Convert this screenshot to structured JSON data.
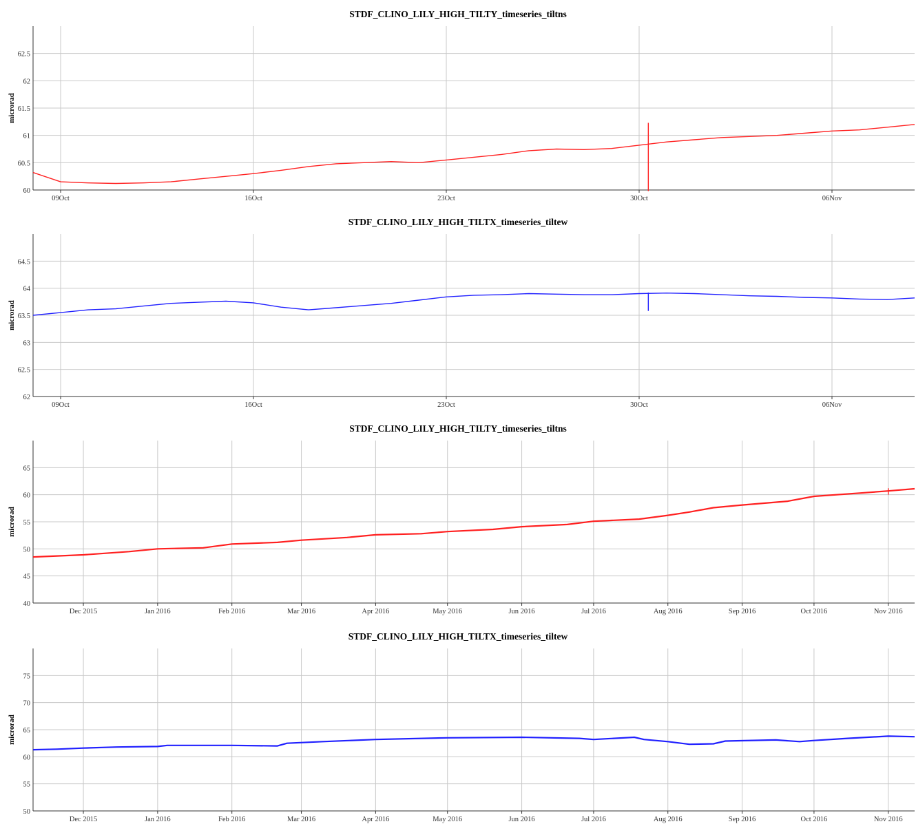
{
  "chart_data": [
    {
      "type": "line",
      "title": "STDF_CLINO_LILY_HIGH_TILTY_timeseries_tiltns",
      "ylabel": "microrad",
      "xlabel": "",
      "xlim": [
        "2016-10-08",
        "2016-11-09"
      ],
      "ylim": [
        60,
        63
      ],
      "yticks": [
        "60",
        "60.5",
        "61",
        "61.5",
        "62",
        "62.5"
      ],
      "xticks": [
        {
          "label": "09Oct",
          "date": "2016-10-09"
        },
        {
          "label": "16Oct",
          "date": "2016-10-16"
        },
        {
          "label": "23Oct",
          "date": "2016-10-23"
        },
        {
          "label": "30Oct",
          "date": "2016-10-30"
        },
        {
          "label": "06Nov",
          "date": "2016-11-06"
        }
      ],
      "grid": true,
      "color": "#ff2020",
      "series": [
        {
          "x": [
            "2016-10-08",
            "2016-10-09",
            "2016-10-10",
            "2016-10-11",
            "2016-10-12",
            "2016-10-13",
            "2016-10-14",
            "2016-10-15",
            "2016-10-16",
            "2016-10-17",
            "2016-10-18",
            "2016-10-19",
            "2016-10-20",
            "2016-10-21",
            "2016-10-22",
            "2016-10-23",
            "2016-10-24",
            "2016-10-25",
            "2016-10-26",
            "2016-10-27",
            "2016-10-28",
            "2016-10-29",
            "2016-10-30",
            "2016-10-31",
            "2016-11-01",
            "2016-11-02",
            "2016-11-03",
            "2016-11-04",
            "2016-11-05",
            "2016-11-06",
            "2016-11-07",
            "2016-11-08",
            "2016-11-09"
          ],
          "values": [
            60.32,
            60.15,
            60.13,
            60.12,
            60.13,
            60.15,
            60.2,
            60.25,
            60.3,
            60.36,
            60.43,
            60.48,
            60.5,
            60.52,
            60.5,
            60.55,
            60.6,
            60.65,
            60.72,
            60.75,
            60.74,
            60.76,
            60.82,
            60.88,
            60.92,
            60.96,
            60.98,
            61.0,
            61.04,
            61.08,
            61.1,
            61.15,
            61.2
          ],
          "spikes": [
            {
              "x": "2016-10-30T08:00",
              "min": 59.98,
              "max": 61.23
            }
          ]
        }
      ]
    },
    {
      "type": "line",
      "title": "STDF_CLINO_LILY_HIGH_TILTX_timeseries_tiltew",
      "ylabel": "microrad",
      "xlabel": "",
      "xlim": [
        "2016-10-08",
        "2016-11-09"
      ],
      "ylim": [
        62,
        65
      ],
      "yticks": [
        "62",
        "62.5",
        "63",
        "63.5",
        "64",
        "64.5"
      ],
      "xticks": [
        {
          "label": "09Oct",
          "date": "2016-10-09"
        },
        {
          "label": "16Oct",
          "date": "2016-10-16"
        },
        {
          "label": "23Oct",
          "date": "2016-10-23"
        },
        {
          "label": "30Oct",
          "date": "2016-10-30"
        },
        {
          "label": "06Nov",
          "date": "2016-11-06"
        }
      ],
      "grid": true,
      "color": "#2020ff",
      "series": [
        {
          "x": [
            "2016-10-08",
            "2016-10-09",
            "2016-10-10",
            "2016-10-11",
            "2016-10-12",
            "2016-10-13",
            "2016-10-14",
            "2016-10-15",
            "2016-10-16",
            "2016-10-17",
            "2016-10-18",
            "2016-10-19",
            "2016-10-20",
            "2016-10-21",
            "2016-10-22",
            "2016-10-23",
            "2016-10-24",
            "2016-10-25",
            "2016-10-26",
            "2016-10-27",
            "2016-10-28",
            "2016-10-29",
            "2016-10-30",
            "2016-10-31",
            "2016-11-01",
            "2016-11-02",
            "2016-11-03",
            "2016-11-04",
            "2016-11-05",
            "2016-11-06",
            "2016-11-07",
            "2016-11-08",
            "2016-11-09"
          ],
          "values": [
            63.5,
            63.55,
            63.6,
            63.62,
            63.67,
            63.72,
            63.74,
            63.76,
            63.73,
            63.65,
            63.6,
            63.64,
            63.68,
            63.72,
            63.78,
            63.84,
            63.87,
            63.88,
            63.9,
            63.89,
            63.88,
            63.88,
            63.9,
            63.91,
            63.9,
            63.88,
            63.86,
            63.85,
            63.83,
            63.82,
            63.8,
            63.79,
            63.82
          ],
          "spikes": [
            {
              "x": "2016-10-30T08:00",
              "min": 63.58,
              "max": 63.92
            }
          ]
        }
      ]
    },
    {
      "type": "line",
      "title": "STDF_CLINO_LILY_HIGH_TILTY_timeseries_tiltns",
      "ylabel": "microrad",
      "xlabel": "",
      "xlim": [
        "2015-11-10",
        "2016-11-12"
      ],
      "ylim": [
        40,
        70
      ],
      "yticks": [
        "40",
        "45",
        "50",
        "55",
        "60",
        "65"
      ],
      "xticks": [
        {
          "label": "Dec 2015",
          "date": "2015-12-01"
        },
        {
          "label": "Jan 2016",
          "date": "2016-01-01"
        },
        {
          "label": "Feb 2016",
          "date": "2016-02-01"
        },
        {
          "label": "Mar 2016",
          "date": "2016-03-01"
        },
        {
          "label": "Apr 2016",
          "date": "2016-04-01"
        },
        {
          "label": "May 2016",
          "date": "2016-05-01"
        },
        {
          "label": "Jun 2016",
          "date": "2016-06-01"
        },
        {
          "label": "Jul 2016",
          "date": "2016-07-01"
        },
        {
          "label": "Aug 2016",
          "date": "2016-08-01"
        },
        {
          "label": "Sep 2016",
          "date": "2016-09-01"
        },
        {
          "label": "Oct 2016",
          "date": "2016-10-01"
        },
        {
          "label": "Nov 2016",
          "date": "2016-11-01"
        }
      ],
      "grid": true,
      "color": "#ff2020",
      "series": [
        {
          "x": [
            "2015-11-10",
            "2015-12-01",
            "2015-12-20",
            "2016-01-01",
            "2016-01-20",
            "2016-02-01",
            "2016-02-20",
            "2016-03-01",
            "2016-03-20",
            "2016-04-01",
            "2016-04-20",
            "2016-05-01",
            "2016-05-20",
            "2016-06-01",
            "2016-06-20",
            "2016-07-01",
            "2016-07-20",
            "2016-08-01",
            "2016-08-10",
            "2016-08-20",
            "2016-09-01",
            "2016-09-20",
            "2016-10-01",
            "2016-10-20",
            "2016-11-01",
            "2016-11-12"
          ],
          "values": [
            48.5,
            48.9,
            49.5,
            50.0,
            50.2,
            50.9,
            51.2,
            51.6,
            52.1,
            52.6,
            52.8,
            53.2,
            53.6,
            54.1,
            54.5,
            55.1,
            55.5,
            56.2,
            56.8,
            57.6,
            58.1,
            58.8,
            59.7,
            60.3,
            60.7,
            61.1
          ],
          "spikes": [
            {
              "x": "2016-11-01",
              "min": 60.0,
              "max": 61.2
            }
          ]
        }
      ]
    },
    {
      "type": "line",
      "title": "STDF_CLINO_LILY_HIGH_TILTX_timeseries_tiltew",
      "ylabel": "microrad",
      "xlabel": "",
      "xlim": [
        "2015-11-10",
        "2016-11-12"
      ],
      "ylim": [
        50,
        80
      ],
      "yticks": [
        "50",
        "55",
        "60",
        "65",
        "70",
        "75"
      ],
      "xticks": [
        {
          "label": "Dec 2015",
          "date": "2015-12-01"
        },
        {
          "label": "Jan 2016",
          "date": "2016-01-01"
        },
        {
          "label": "Feb 2016",
          "date": "2016-02-01"
        },
        {
          "label": "Mar 2016",
          "date": "2016-03-01"
        },
        {
          "label": "Apr 2016",
          "date": "2016-04-01"
        },
        {
          "label": "May 2016",
          "date": "2016-05-01"
        },
        {
          "label": "Jun 2016",
          "date": "2016-06-01"
        },
        {
          "label": "Jul 2016",
          "date": "2016-07-01"
        },
        {
          "label": "Aug 2016",
          "date": "2016-08-01"
        },
        {
          "label": "Sep 2016",
          "date": "2016-09-01"
        },
        {
          "label": "Oct 2016",
          "date": "2016-10-01"
        },
        {
          "label": "Nov 2016",
          "date": "2016-11-01"
        }
      ],
      "grid": true,
      "color": "#2020ff",
      "series": [
        {
          "x": [
            "2015-11-10",
            "2015-11-20",
            "2015-12-01",
            "2015-12-15",
            "2016-01-01",
            "2016-01-05",
            "2016-02-01",
            "2016-02-20",
            "2016-02-24",
            "2016-03-10",
            "2016-04-01",
            "2016-05-01",
            "2016-06-01",
            "2016-06-25",
            "2016-07-01",
            "2016-07-18",
            "2016-07-22",
            "2016-08-01",
            "2016-08-10",
            "2016-08-20",
            "2016-08-25",
            "2016-09-15",
            "2016-09-25",
            "2016-10-01",
            "2016-10-15",
            "2016-11-01",
            "2016-11-12"
          ],
          "values": [
            61.3,
            61.4,
            61.6,
            61.8,
            61.9,
            62.1,
            62.1,
            62.0,
            62.5,
            62.8,
            63.2,
            63.5,
            63.6,
            63.4,
            63.2,
            63.6,
            63.2,
            62.8,
            62.3,
            62.4,
            62.9,
            63.1,
            62.8,
            63.0,
            63.4,
            63.8,
            63.7
          ],
          "spikes": []
        }
      ]
    }
  ]
}
